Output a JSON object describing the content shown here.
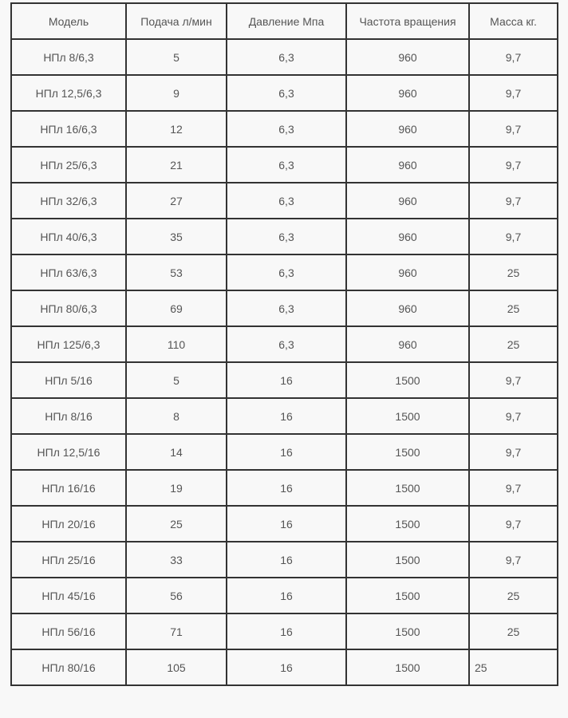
{
  "table": {
    "headers": [
      "Модель",
      "Подача л/мин",
      "Давление Мпа",
      "Частота вращения",
      "Масса кг."
    ],
    "rows": [
      [
        "НПл 8/6,3",
        "5",
        "6,3",
        "960",
        "9,7"
      ],
      [
        "НПл 12,5/6,3",
        "9",
        "6,3",
        "960",
        "9,7"
      ],
      [
        "НПл 16/6,3",
        "12",
        "6,3",
        "960",
        "9,7"
      ],
      [
        "НПл 25/6,3",
        "21",
        "6,3",
        "960",
        "9,7"
      ],
      [
        "НПл 32/6,3",
        "27",
        "6,3",
        "960",
        "9,7"
      ],
      [
        "НПл 40/6,3",
        "35",
        "6,3",
        "960",
        "9,7"
      ],
      [
        "НПл 63/6,3",
        "53",
        "6,3",
        "960",
        "25"
      ],
      [
        "НПл 80/6,3",
        "69",
        "6,3",
        "960",
        "25"
      ],
      [
        "НПл 125/6,3",
        "110",
        "6,3",
        "960",
        "25"
      ],
      [
        "НПл 5/16",
        "5",
        "16",
        "1500",
        "9,7"
      ],
      [
        "НПл 8/16",
        "8",
        "16",
        "1500",
        "9,7"
      ],
      [
        "НПл 12,5/16",
        "14",
        "16",
        "1500",
        "9,7"
      ],
      [
        "НПл 16/16",
        "19",
        "16",
        "1500",
        "9,7"
      ],
      [
        "НПл 20/16",
        "25",
        "16",
        "1500",
        "9,7"
      ],
      [
        "НПл 25/16",
        "33",
        "16",
        "1500",
        "9,7"
      ],
      [
        "НПл 45/16",
        "56",
        "16",
        "1500",
        "25"
      ],
      [
        "НПл 56/16",
        "71",
        "16",
        "1500",
        "25"
      ],
      [
        "НПл 80/16",
        "105",
        "16",
        "1500",
        "25"
      ]
    ]
  },
  "colors": {
    "border": "#333333",
    "text": "#555555",
    "background": "#f8f8f8"
  }
}
